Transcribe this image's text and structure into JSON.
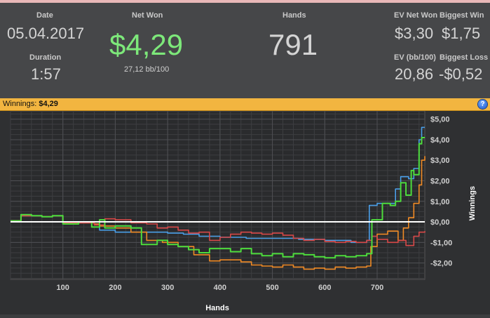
{
  "stats": {
    "date_label": "Date",
    "date_value": "05.04.2017",
    "duration_label": "Duration",
    "duration_value": "1:57",
    "net_won_label": "Net Won",
    "net_won_value": "$4,29",
    "net_won_sub": "27,12 bb/100",
    "hands_label": "Hands",
    "hands_value": "791",
    "ev_net_won_label": "EV Net Won",
    "ev_net_won_value": "$3,30",
    "biggest_win_label": "Biggest Win",
    "biggest_win_value": "$1,75",
    "ev_bb_label": "EV (bb/100)",
    "ev_bb_value": "20,86",
    "biggest_loss_label": "Biggest Loss",
    "biggest_loss_value": "-$0,52"
  },
  "banner": {
    "label": "Winnings:",
    "value": "$4,29",
    "help_icon": "?"
  },
  "colors": {
    "net_won": "#7de87a",
    "banner": "#f2b540",
    "series_green": "#4ddc3c",
    "series_blue": "#4a9fe8",
    "series_orange": "#f08a24",
    "series_red": "#d84848",
    "zero_line": "#ffffff"
  },
  "chart_data": {
    "type": "line",
    "xlabel": "Hands",
    "ylabel": "Winnings",
    "xlim": [
      0,
      791
    ],
    "ylim": [
      -2.8,
      5.4
    ],
    "x_ticks": [
      100,
      200,
      300,
      400,
      500,
      600,
      700
    ],
    "y_ticks": [
      5,
      4,
      3,
      2,
      1,
      0,
      -1,
      -2
    ],
    "y_tick_labels": [
      "$5,00",
      "$4,00",
      "$3,00",
      "$2,00",
      "$1,00",
      "$0,00",
      "-$1,00",
      "-$2,00"
    ],
    "grid": true,
    "series": [
      {
        "color": "#4ddc3c",
        "points": [
          [
            0,
            0.05
          ],
          [
            20,
            0.35
          ],
          [
            40,
            0.3
          ],
          [
            60,
            0.25
          ],
          [
            80,
            0.3
          ],
          [
            100,
            -0.1
          ],
          [
            130,
            0.0
          ],
          [
            155,
            -0.25
          ],
          [
            170,
            0.1
          ],
          [
            180,
            -0.3
          ],
          [
            200,
            -0.2
          ],
          [
            230,
            -0.3
          ],
          [
            250,
            -1.1
          ],
          [
            280,
            -0.9
          ],
          [
            300,
            -1.1
          ],
          [
            320,
            -1.2
          ],
          [
            340,
            -1.35
          ],
          [
            360,
            -1.5
          ],
          [
            380,
            -1.3
          ],
          [
            400,
            -1.3
          ],
          [
            420,
            -1.45
          ],
          [
            440,
            -1.3
          ],
          [
            460,
            -1.55
          ],
          [
            480,
            -1.65
          ],
          [
            500,
            -1.55
          ],
          [
            520,
            -1.7
          ],
          [
            540,
            -1.55
          ],
          [
            560,
            -1.6
          ],
          [
            580,
            -1.7
          ],
          [
            600,
            -1.75
          ],
          [
            620,
            -1.65
          ],
          [
            640,
            -1.7
          ],
          [
            660,
            -1.65
          ],
          [
            680,
            -1.55
          ],
          [
            690,
            0.1
          ],
          [
            710,
            0.9
          ],
          [
            725,
            0.8
          ],
          [
            735,
            1.0
          ],
          [
            745,
            1.9
          ],
          [
            755,
            1.3
          ],
          [
            765,
            2.5
          ],
          [
            770,
            2.3
          ],
          [
            780,
            3.8
          ],
          [
            785,
            4.1
          ],
          [
            791,
            4.1
          ]
        ]
      },
      {
        "color": "#4a9fe8",
        "points": [
          [
            0,
            0.05
          ],
          [
            20,
            0.3
          ],
          [
            40,
            0.3
          ],
          [
            60,
            0.25
          ],
          [
            80,
            0.3
          ],
          [
            100,
            -0.05
          ],
          [
            130,
            -0.05
          ],
          [
            160,
            -0.1
          ],
          [
            170,
            -0.4
          ],
          [
            200,
            -0.5
          ],
          [
            260,
            -0.5
          ],
          [
            300,
            -0.55
          ],
          [
            330,
            -0.6
          ],
          [
            360,
            -0.7
          ],
          [
            400,
            -0.75
          ],
          [
            450,
            -0.8
          ],
          [
            500,
            -0.8
          ],
          [
            550,
            -0.85
          ],
          [
            600,
            -0.9
          ],
          [
            650,
            -1.0
          ],
          [
            680,
            -0.9
          ],
          [
            685,
            0.8
          ],
          [
            700,
            0.9
          ],
          [
            725,
            0.9
          ],
          [
            735,
            1.6
          ],
          [
            745,
            2.2
          ],
          [
            760,
            2.1
          ],
          [
            770,
            2.6
          ],
          [
            780,
            4.0
          ],
          [
            785,
            4.6
          ],
          [
            791,
            4.6
          ]
        ]
      },
      {
        "color": "#f08a24",
        "points": [
          [
            0,
            0.05
          ],
          [
            20,
            0.3
          ],
          [
            40,
            0.3
          ],
          [
            60,
            0.25
          ],
          [
            80,
            0.3
          ],
          [
            100,
            -0.05
          ],
          [
            130,
            -0.05
          ],
          [
            160,
            -0.1
          ],
          [
            170,
            -0.2
          ],
          [
            200,
            -0.3
          ],
          [
            230,
            -0.5
          ],
          [
            260,
            -0.9
          ],
          [
            290,
            -1.0
          ],
          [
            320,
            -1.2
          ],
          [
            350,
            -1.6
          ],
          [
            380,
            -1.9
          ],
          [
            400,
            -1.85
          ],
          [
            420,
            -1.85
          ],
          [
            440,
            -1.95
          ],
          [
            460,
            -2.1
          ],
          [
            480,
            -2.15
          ],
          [
            500,
            -2.2
          ],
          [
            520,
            -2.1
          ],
          [
            540,
            -2.2
          ],
          [
            560,
            -2.3
          ],
          [
            580,
            -2.25
          ],
          [
            600,
            -2.3
          ],
          [
            620,
            -2.2
          ],
          [
            640,
            -2.25
          ],
          [
            660,
            -2.2
          ],
          [
            680,
            -2.15
          ],
          [
            688,
            -1.2
          ],
          [
            700,
            -0.6
          ],
          [
            720,
            -0.45
          ],
          [
            740,
            -0.9
          ],
          [
            750,
            -0.3
          ],
          [
            760,
            0.2
          ],
          [
            770,
            0.9
          ],
          [
            780,
            1.8
          ],
          [
            785,
            3.0
          ],
          [
            791,
            3.2
          ]
        ]
      },
      {
        "color": "#d84848",
        "points": [
          [
            0,
            0.05
          ],
          [
            20,
            0.3
          ],
          [
            40,
            0.3
          ],
          [
            60,
            0.25
          ],
          [
            80,
            0.3
          ],
          [
            100,
            -0.05
          ],
          [
            130,
            -0.05
          ],
          [
            160,
            -0.15
          ],
          [
            180,
            0.15
          ],
          [
            200,
            0.1
          ],
          [
            230,
            -0.05
          ],
          [
            260,
            -0.1
          ],
          [
            280,
            -0.3
          ],
          [
            300,
            -0.25
          ],
          [
            320,
            -0.4
          ],
          [
            340,
            -0.55
          ],
          [
            360,
            -0.5
          ],
          [
            380,
            -0.9
          ],
          [
            400,
            -0.75
          ],
          [
            420,
            -0.6
          ],
          [
            440,
            -0.5
          ],
          [
            460,
            -0.55
          ],
          [
            480,
            -0.6
          ],
          [
            500,
            -0.55
          ],
          [
            520,
            -0.65
          ],
          [
            540,
            -0.8
          ],
          [
            560,
            -0.9
          ],
          [
            580,
            -0.85
          ],
          [
            600,
            -0.95
          ],
          [
            620,
            -1.0
          ],
          [
            640,
            -0.95
          ],
          [
            660,
            -1.0
          ],
          [
            680,
            -0.9
          ],
          [
            690,
            -0.7
          ],
          [
            700,
            -0.85
          ],
          [
            720,
            -1.0
          ],
          [
            740,
            -0.9
          ],
          [
            755,
            -1.15
          ],
          [
            770,
            -0.7
          ],
          [
            780,
            -0.5
          ],
          [
            791,
            -0.45
          ]
        ]
      }
    ]
  }
}
